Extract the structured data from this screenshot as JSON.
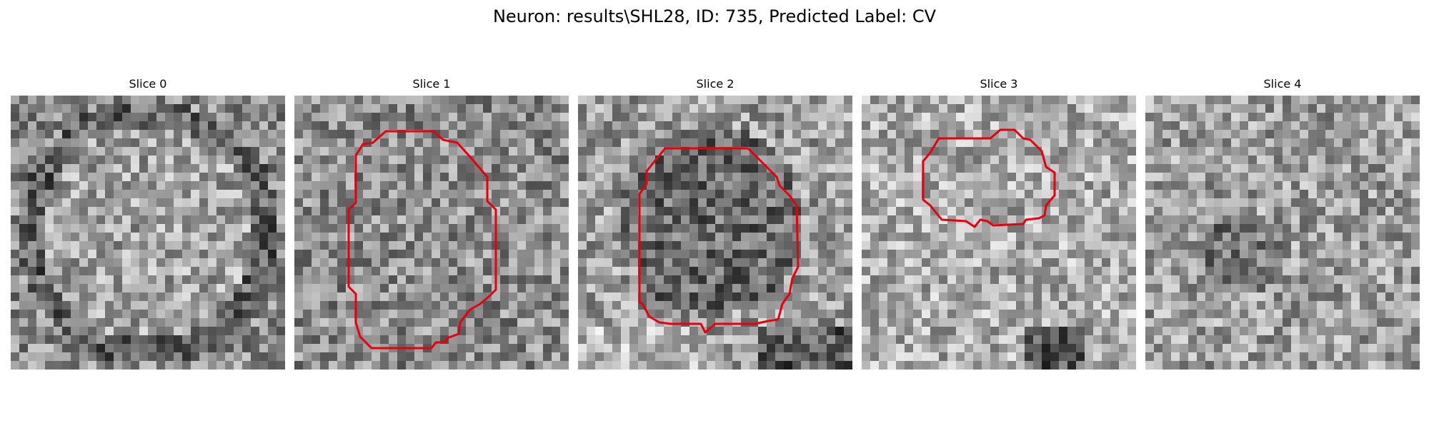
{
  "figure": {
    "title": "Neuron: results\\SHL28, ID: 735, Predicted Label: CV"
  },
  "panels": [
    {
      "title": "Slice 0",
      "has_contour": false
    },
    {
      "title": "Slice 1",
      "has_contour": true
    },
    {
      "title": "Slice 2",
      "has_contour": true
    },
    {
      "title": "Slice 3",
      "has_contour": true
    },
    {
      "title": "Slice 4",
      "has_contour": false
    }
  ],
  "style": {
    "contour_color": "#e8000b"
  }
}
